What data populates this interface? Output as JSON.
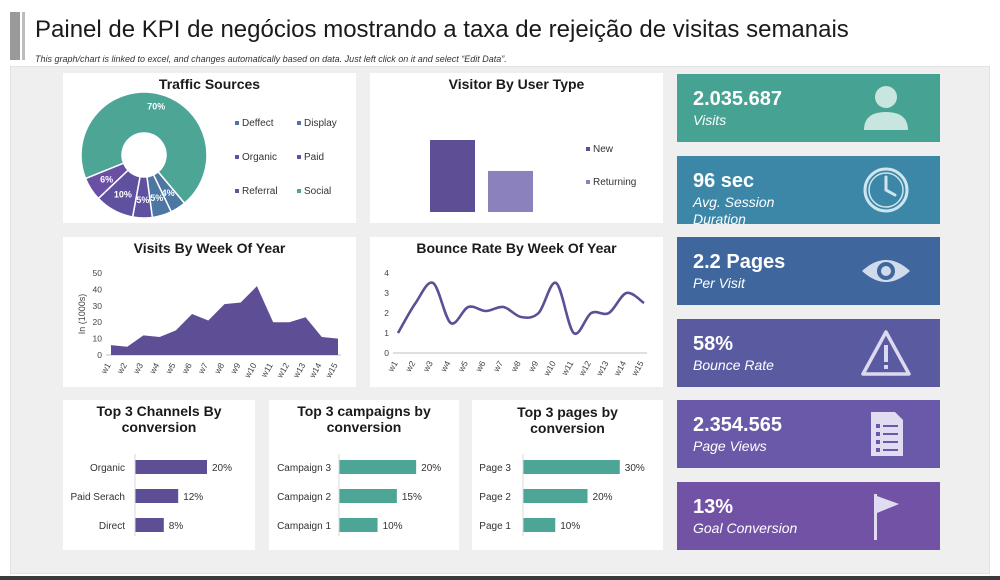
{
  "header": {
    "title": "Painel de KPI de negócios mostrando a taxa de rejeição de visitas semanais",
    "subtitle": "This graph/chart is linked to excel, and changes automatically based on data. Just left click on it and select “Edit Data”."
  },
  "colors": {
    "purple": "#5e4e96",
    "teal": "#4da596",
    "light_purple": "#8b82bd",
    "blue": "#3f6f9a"
  },
  "kpis": [
    {
      "value": "2.035.687",
      "label": "Visits",
      "label2": "",
      "icon": "user-icon",
      "color": "#46a293"
    },
    {
      "value": "96 sec",
      "label": "Avg. Session",
      "label2": "Duration",
      "icon": "clock-icon",
      "color": "#3c86a8"
    },
    {
      "value": "2.2 Pages",
      "label": "Per Visit",
      "label2": "",
      "icon": "eye-icon",
      "color": "#40679d"
    },
    {
      "value": "58%",
      "label": "Bounce Rate",
      "label2": "",
      "icon": "warning-icon",
      "color": "#5a5aa0"
    },
    {
      "value": "2.354.565",
      "label": "Page Views",
      "label2": "",
      "icon": "document-icon",
      "color": "#6a58a8"
    },
    {
      "value": "13%",
      "label": "Goal Conversion",
      "label2": "",
      "icon": "flag-icon",
      "color": "#7252a5"
    }
  ],
  "chart_data": [
    {
      "type": "pie",
      "title": "Traffic Sources",
      "categories": [
        "Deffect",
        "Display",
        "Organic",
        "Paid",
        "Referral",
        "Social"
      ],
      "values": [
        4,
        5,
        5,
        10,
        6,
        70
      ],
      "slice_labels": [
        "4%",
        "5%",
        "5%",
        "10%",
        "6%",
        "70%"
      ],
      "colors": [
        "#4c77a3",
        "#4c77a3",
        "#6050a0",
        "#6050a0",
        "#6a4fa4",
        "#4da596"
      ],
      "legend_position": "right"
    },
    {
      "type": "bar",
      "title": "Visitor By User Type",
      "categories": [
        "New",
        "Returning"
      ],
      "values": [
        100,
        57
      ],
      "colors": [
        "#5e4e96",
        "#8b82bd"
      ],
      "legend_position": "right"
    },
    {
      "type": "area",
      "title": "Visits By Week Of Year",
      "ylabel": "In (1000s)",
      "x": [
        "w1",
        "w2",
        "w3",
        "w4",
        "w5",
        "w6",
        "w7",
        "w8",
        "w9",
        "w10",
        "w11",
        "w12",
        "w13",
        "w14",
        "w15"
      ],
      "values": [
        6,
        5,
        12,
        11,
        15,
        25,
        21,
        31,
        32,
        42,
        20,
        20,
        23,
        11,
        10
      ],
      "ylim": [
        0,
        50
      ],
      "yticks": [
        "0",
        "10",
        "20",
        "30",
        "40",
        "50"
      ]
    },
    {
      "type": "line",
      "title": "Bounce Rate By Week Of Year",
      "x": [
        "w1",
        "w2",
        "w3",
        "w4",
        "w5",
        "w6",
        "w7",
        "w8",
        "w9",
        "w10",
        "w11",
        "w12",
        "w13",
        "w14",
        "w15"
      ],
      "values": [
        1,
        2.5,
        3.5,
        1.5,
        2.3,
        2.1,
        2.3,
        1.8,
        2,
        3.5,
        1,
        2,
        2,
        3,
        2.5
      ],
      "ylim": [
        0,
        4
      ],
      "yticks": [
        "0",
        "1",
        "2",
        "3",
        "4"
      ]
    },
    {
      "type": "bar",
      "orientation": "horizontal",
      "title": "Top 3 Channels By conversion",
      "title_lines": [
        "Top 3 Channels By",
        "conversion"
      ],
      "categories": [
        "Organic",
        "Paid Serach",
        "Direct"
      ],
      "values": [
        20,
        12,
        8
      ],
      "labels": [
        "20%",
        "12%",
        "8%"
      ],
      "max": 30,
      "color": "#5e4e96"
    },
    {
      "type": "bar",
      "orientation": "horizontal",
      "title": "Top 3 campaigns by conversion",
      "title_lines": [
        "Top 3 campaigns by",
        "conversion"
      ],
      "categories": [
        "Campaign 3",
        "Campaign 2",
        "Campaign 1"
      ],
      "values": [
        20,
        15,
        10
      ],
      "labels": [
        "20%",
        "15%",
        "10%"
      ],
      "max": 28,
      "color": "#4da596"
    },
    {
      "type": "bar",
      "orientation": "horizontal",
      "title": "Top 3 pages by conversion",
      "title_lines": [
        "Top 3 pages by",
        "conversion"
      ],
      "categories": [
        "Page 3",
        "Page 2",
        "Page 1"
      ],
      "values": [
        30,
        20,
        10
      ],
      "labels": [
        "30%",
        "20%",
        "10%"
      ],
      "max": 31,
      "color": "#4da596"
    }
  ]
}
